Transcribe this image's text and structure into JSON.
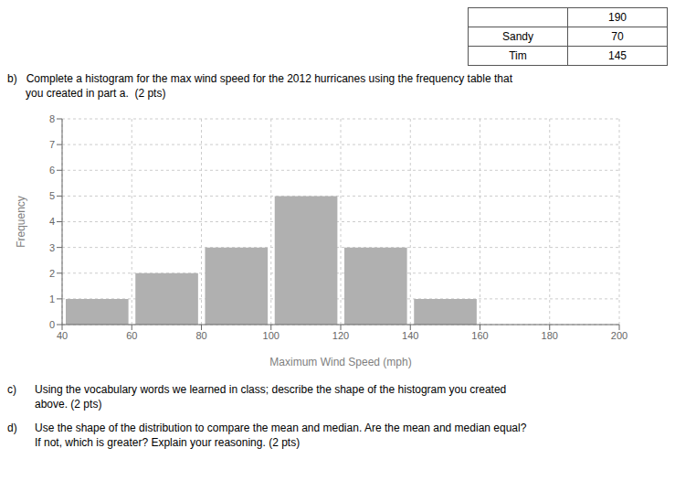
{
  "chart_data": {
    "type": "histogram",
    "bins": [
      40,
      60,
      80,
      100,
      120,
      140,
      160,
      180,
      200
    ],
    "counts": [
      1,
      2,
      3,
      5,
      3,
      1,
      0,
      0
    ],
    "xlabel": "Maximum Wind Speed (mph)",
    "ylabel": "Frequency",
    "xlim": [
      40,
      200
    ],
    "ylim": [
      0,
      8
    ],
    "xticks": [
      40,
      60,
      80,
      100,
      120,
      140,
      160,
      180,
      200
    ],
    "yticks": [
      0,
      1,
      2,
      3,
      4,
      5,
      6,
      7,
      8
    ],
    "grid": true,
    "color": "#b0b0b0",
    "table": {
      "header": [
        null,
        "190"
      ],
      "rows": [
        [
          "Sandy",
          "70"
        ],
        [
          "Tim",
          "145"
        ]
      ]
    },
    "annotations": [
      {
        "lines": [
          "b)   Complete a histogram for the max wind speed for the 2012 hurricanes using the frequency table that",
          "      you created in part a.  (2 pts)"
        ]
      },
      {
        "label": "c)",
        "lines": [
          "Using the vocabulary words we learned in class; describe the shape of the histogram you created",
          "above. (2 pts)"
        ]
      },
      {
        "label": "d)",
        "lines": [
          "Use the shape of the distribution to compare the mean and median. Are the mean and median equal?",
          "If not, which is greater? Explain your reasoning. (2 pts)"
        ]
      }
    ]
  }
}
